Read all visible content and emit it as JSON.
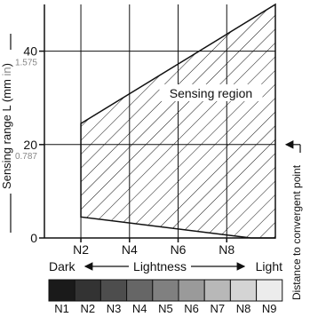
{
  "chart_data": {
    "type": "area",
    "ylabel": "Sensing range L (mm",
    "ylabel_unit": "in",
    "y_ticks": [
      {
        "value": 0,
        "label": "0",
        "sub": ""
      },
      {
        "value": 20,
        "label": "20",
        "sub": "0.787"
      },
      {
        "value": 40,
        "label": "40",
        "sub": "1.575"
      }
    ],
    "ylim": [
      0,
      50
    ],
    "x_ticks": [
      "N2",
      "N4",
      "N6",
      "N8"
    ],
    "x_tick_values": [
      2,
      4,
      6,
      8
    ],
    "xlim": [
      0.5,
      10
    ],
    "grid": true,
    "region": {
      "label": "Sensing region",
      "upper": [
        {
          "x": 2,
          "y": 24.5
        },
        {
          "x": 10,
          "y": 50
        }
      ],
      "lower": [
        {
          "x": 2,
          "y": 4.5
        },
        {
          "x": 9,
          "y": 0
        },
        {
          "x": 10,
          "y": 0
        }
      ]
    },
    "convergent_point": {
      "value": 20,
      "label": "Distance to convergent point"
    },
    "lightness_scale": {
      "dark_label": "Dark",
      "center_label": "Lightness",
      "light_label": "Light",
      "swatch_labels": [
        "N1",
        "N2",
        "N3",
        "N4",
        "N5",
        "N6",
        "N7",
        "N8",
        "N9"
      ],
      "swatch_colors": [
        "#1a1a1a",
        "#333333",
        "#4d4d4d",
        "#666666",
        "#808080",
        "#9a9a9a",
        "#b8b8b8",
        "#d4d4d4",
        "#ececec"
      ]
    }
  }
}
